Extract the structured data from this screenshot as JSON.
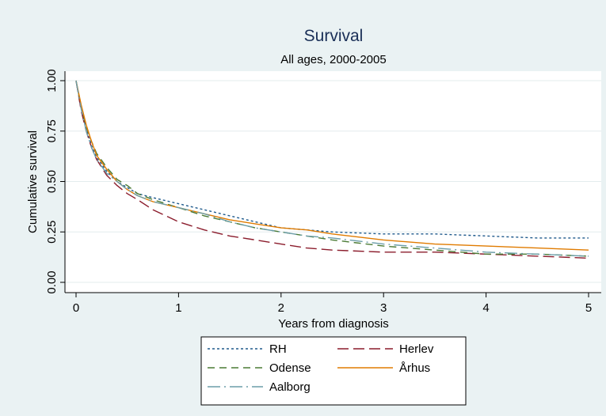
{
  "chart_data": {
    "type": "line",
    "title": "Survival",
    "subtitle": "All ages, 2000-2005",
    "xlabel": "Years from diagnosis",
    "ylabel": "Cumulative survival",
    "xlim": [
      0,
      5
    ],
    "ylim": [
      0,
      1
    ],
    "x_ticks": [
      0,
      1,
      2,
      3,
      4,
      5
    ],
    "x_tick_labels": [
      "0",
      "1",
      "2",
      "3",
      "4",
      "5"
    ],
    "y_ticks": [
      0,
      0.25,
      0.5,
      0.75,
      1
    ],
    "y_tick_labels": [
      "0.00",
      "0.25",
      "0.50",
      "0.75",
      "1.00"
    ],
    "grid": true,
    "legend_position": "bottom",
    "series": [
      {
        "name": "RH",
        "color": "#1f5a8c",
        "dash": "3,3",
        "points": [
          [
            0,
            1
          ],
          [
            0.05,
            0.86
          ],
          [
            0.1,
            0.76
          ],
          [
            0.15,
            0.68
          ],
          [
            0.2,
            0.62
          ],
          [
            0.3,
            0.55
          ],
          [
            0.4,
            0.5
          ],
          [
            0.5,
            0.47
          ],
          [
            0.6,
            0.44
          ],
          [
            0.75,
            0.42
          ],
          [
            1,
            0.39
          ],
          [
            1.25,
            0.36
          ],
          [
            1.5,
            0.33
          ],
          [
            1.75,
            0.3
          ],
          [
            2,
            0.27
          ],
          [
            2.25,
            0.26
          ],
          [
            2.5,
            0.25
          ],
          [
            3,
            0.24
          ],
          [
            3.5,
            0.24
          ],
          [
            4,
            0.23
          ],
          [
            4.5,
            0.22
          ],
          [
            5,
            0.22
          ]
        ]
      },
      {
        "name": "Herlev",
        "color": "#8b1c2c",
        "dash": "14,6",
        "points": [
          [
            0,
            1
          ],
          [
            0.05,
            0.85
          ],
          [
            0.1,
            0.75
          ],
          [
            0.15,
            0.67
          ],
          [
            0.2,
            0.61
          ],
          [
            0.3,
            0.53
          ],
          [
            0.4,
            0.48
          ],
          [
            0.5,
            0.44
          ],
          [
            0.6,
            0.41
          ],
          [
            0.75,
            0.36
          ],
          [
            1,
            0.3
          ],
          [
            1.25,
            0.26
          ],
          [
            1.5,
            0.23
          ],
          [
            1.75,
            0.21
          ],
          [
            2,
            0.19
          ],
          [
            2.25,
            0.17
          ],
          [
            2.5,
            0.16
          ],
          [
            3,
            0.15
          ],
          [
            3.5,
            0.15
          ],
          [
            4,
            0.14
          ],
          [
            4.5,
            0.13
          ],
          [
            5,
            0.12
          ]
        ]
      },
      {
        "name": "Odense",
        "color": "#4a7a34",
        "dash": "9,6",
        "points": [
          [
            0,
            1
          ],
          [
            0.05,
            0.87
          ],
          [
            0.1,
            0.77
          ],
          [
            0.15,
            0.7
          ],
          [
            0.2,
            0.64
          ],
          [
            0.3,
            0.57
          ],
          [
            0.4,
            0.51
          ],
          [
            0.5,
            0.48
          ],
          [
            0.6,
            0.44
          ],
          [
            0.75,
            0.41
          ],
          [
            1,
            0.37
          ],
          [
            1.25,
            0.33
          ],
          [
            1.5,
            0.3
          ],
          [
            1.75,
            0.27
          ],
          [
            2,
            0.25
          ],
          [
            2.25,
            0.23
          ],
          [
            2.5,
            0.21
          ],
          [
            3,
            0.18
          ],
          [
            3.5,
            0.16
          ],
          [
            4,
            0.14
          ],
          [
            4.5,
            0.14
          ],
          [
            5,
            0.13
          ]
        ]
      },
      {
        "name": "Århus",
        "color": "#e07b00",
        "dash": "",
        "points": [
          [
            0,
            1
          ],
          [
            0.05,
            0.88
          ],
          [
            0.1,
            0.78
          ],
          [
            0.15,
            0.7
          ],
          [
            0.2,
            0.63
          ],
          [
            0.3,
            0.56
          ],
          [
            0.4,
            0.5
          ],
          [
            0.5,
            0.46
          ],
          [
            0.6,
            0.43
          ],
          [
            0.75,
            0.4
          ],
          [
            1,
            0.37
          ],
          [
            1.25,
            0.34
          ],
          [
            1.5,
            0.31
          ],
          [
            1.75,
            0.29
          ],
          [
            2,
            0.27
          ],
          [
            2.25,
            0.26
          ],
          [
            2.5,
            0.24
          ],
          [
            3,
            0.21
          ],
          [
            3.5,
            0.19
          ],
          [
            4,
            0.18
          ],
          [
            4.5,
            0.17
          ],
          [
            5,
            0.16
          ]
        ]
      },
      {
        "name": "Aalborg",
        "color": "#6b9da8",
        "dash": "16,5,2,5",
        "points": [
          [
            0,
            1
          ],
          [
            0.05,
            0.86
          ],
          [
            0.1,
            0.75
          ],
          [
            0.15,
            0.67
          ],
          [
            0.2,
            0.61
          ],
          [
            0.3,
            0.54
          ],
          [
            0.4,
            0.5
          ],
          [
            0.5,
            0.46
          ],
          [
            0.6,
            0.43
          ],
          [
            0.75,
            0.4
          ],
          [
            1,
            0.37
          ],
          [
            1.25,
            0.34
          ],
          [
            1.5,
            0.3
          ],
          [
            1.75,
            0.27
          ],
          [
            2,
            0.25
          ],
          [
            2.25,
            0.23
          ],
          [
            2.5,
            0.22
          ],
          [
            3,
            0.19
          ],
          [
            3.5,
            0.17
          ],
          [
            4,
            0.15
          ],
          [
            4.5,
            0.14
          ],
          [
            5,
            0.13
          ]
        ]
      }
    ]
  }
}
